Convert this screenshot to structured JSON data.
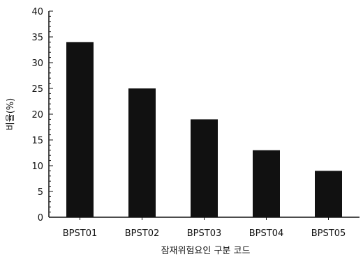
{
  "chart_data": {
    "type": "bar",
    "categories": [
      "BPST01",
      "BPST02",
      "BPST03",
      "BPST04",
      "BPST05"
    ],
    "values": [
      34,
      25,
      19,
      13,
      9
    ],
    "xlabel": "잠재위험요인 구분 코드",
    "ylabel": "비율(%)",
    "ylim": [
      0,
      40
    ],
    "yticks": [
      0,
      5,
      10,
      15,
      20,
      25,
      30,
      35,
      40
    ],
    "grid": false,
    "bar_color": "#111111"
  }
}
